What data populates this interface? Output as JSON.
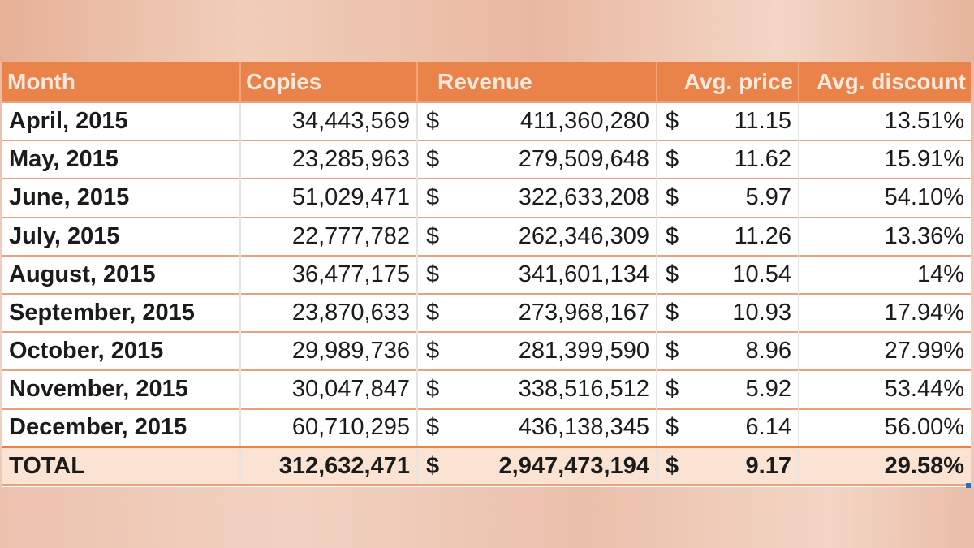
{
  "table": {
    "headers": {
      "month": "Month",
      "copies": "Copies",
      "revenue": "Revenue",
      "avg_price": "Avg. price",
      "avg_discount": "Avg. discount"
    },
    "currency_symbol": "$",
    "rows": [
      {
        "month": "April, 2015",
        "copies": "34,443,569",
        "revenue": "411,360,280",
        "avg_price": "11.15",
        "avg_discount": "13.51%"
      },
      {
        "month": "May, 2015",
        "copies": "23,285,963",
        "revenue": "279,509,648",
        "avg_price": "11.62",
        "avg_discount": "15.91%"
      },
      {
        "month": "June, 2015",
        "copies": "51,029,471",
        "revenue": "322,633,208",
        "avg_price": "5.97",
        "avg_discount": "54.10%"
      },
      {
        "month": "July, 2015",
        "copies": "22,777,782",
        "revenue": "262,346,309",
        "avg_price": "11.26",
        "avg_discount": "13.36%"
      },
      {
        "month": "August, 2015",
        "copies": "36,477,175",
        "revenue": "341,601,134",
        "avg_price": "10.54",
        "avg_discount": "14%"
      },
      {
        "month": "September, 2015",
        "copies": "23,870,633",
        "revenue": "273,968,167",
        "avg_price": "10.93",
        "avg_discount": "17.94%"
      },
      {
        "month": "October, 2015",
        "copies": "29,989,736",
        "revenue": "281,399,590",
        "avg_price": "8.96",
        "avg_discount": "27.99%"
      },
      {
        "month": "November, 2015",
        "copies": "30,047,847",
        "revenue": "338,516,512",
        "avg_price": "5.92",
        "avg_discount": "53.44%"
      },
      {
        "month": "December, 2015",
        "copies": "60,710,295",
        "revenue": "436,138,345",
        "avg_price": "6.14",
        "avg_discount": "56.00%"
      }
    ],
    "total": {
      "label": "TOTAL",
      "copies": "312,632,471",
      "revenue": "2,947,473,194",
      "avg_price": "9.17",
      "avg_discount": "29.58%"
    }
  },
  "colors": {
    "header_bg": "#e9834a",
    "header_text": "#fbe9dd",
    "total_row_bg": "#fbe3d4",
    "row_border": "#e9a37c"
  }
}
